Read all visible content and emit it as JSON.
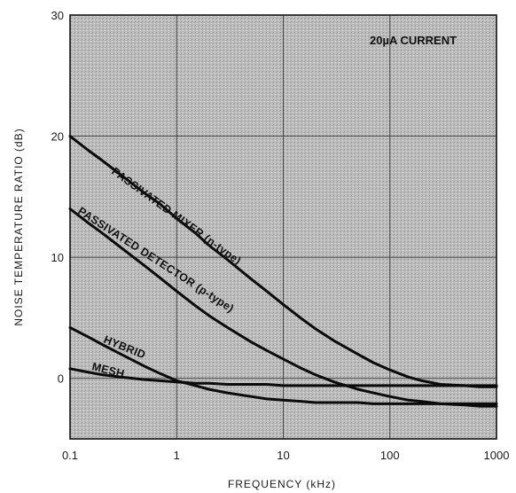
{
  "chart_data": {
    "type": "line",
    "xlabel": "FREQUENCY (kHz)",
    "ylabel": "NOISE TEMPERATURE RATIO (dB)",
    "x_scale": "log",
    "xlim": [
      0.1,
      1000
    ],
    "ylim": [
      -5,
      30
    ],
    "x_ticks": [
      {
        "value": 0.1,
        "label": "0.1"
      },
      {
        "value": 1,
        "label": "1"
      },
      {
        "value": 10,
        "label": "10"
      },
      {
        "value": 100,
        "label": "100"
      },
      {
        "value": 1000,
        "label": "1000"
      }
    ],
    "y_ticks": [
      {
        "value": 0,
        "label": "0"
      },
      {
        "value": 10,
        "label": "10"
      },
      {
        "value": 20,
        "label": "20"
      },
      {
        "value": 30,
        "label": "30"
      }
    ],
    "grid": true,
    "annotation": "20µA CURRENT",
    "series": [
      {
        "name": "PASSIVATED MIXER (n-type)",
        "x": [
          0.1,
          0.15,
          0.2,
          0.3,
          0.5,
          0.7,
          1,
          1.5,
          2,
          3,
          5,
          7,
          10,
          15,
          20,
          30,
          50,
          70,
          100,
          150,
          200,
          300,
          500,
          700,
          1000
        ],
        "y": [
          20,
          18.8,
          18,
          16.8,
          15.3,
          14.4,
          13.2,
          12,
          11,
          9.8,
          8.2,
          7.2,
          6.1,
          4.9,
          4.1,
          3.1,
          2.0,
          1.3,
          0.7,
          0.1,
          -0.2,
          -0.5,
          -0.6,
          -0.7,
          -0.7
        ]
      },
      {
        "name": "PASSIVATED DETECTOR (p-type)",
        "x": [
          0.1,
          0.15,
          0.2,
          0.3,
          0.5,
          0.7,
          1,
          1.5,
          2,
          3,
          5,
          7,
          10,
          15,
          20,
          30,
          50,
          70,
          100,
          150,
          200,
          300,
          500,
          700,
          1000
        ],
        "y": [
          14,
          12.8,
          12,
          10.8,
          9.3,
          8.3,
          7.2,
          6.0,
          5.2,
          4.2,
          3.0,
          2.3,
          1.6,
          0.8,
          0.3,
          -0.3,
          -0.9,
          -1.2,
          -1.5,
          -1.8,
          -1.9,
          -2.1,
          -2.2,
          -2.3,
          -2.3
        ]
      },
      {
        "name": "HYBRID",
        "x": [
          0.1,
          0.15,
          0.2,
          0.3,
          0.5,
          0.7,
          1,
          1.5,
          2,
          3,
          5,
          7,
          10,
          15,
          20,
          30,
          50,
          70,
          100,
          150,
          200,
          300,
          500,
          700,
          1000
        ],
        "y": [
          4.2,
          3.4,
          2.8,
          2.0,
          1.0,
          0.4,
          -0.2,
          -0.6,
          -0.9,
          -1.2,
          -1.5,
          -1.7,
          -1.8,
          -1.9,
          -2.0,
          -2.0,
          -2.0,
          -2.1,
          -2.1,
          -2.1,
          -2.1,
          -2.1,
          -2.1,
          -2.1,
          -2.1
        ]
      },
      {
        "name": "MESH",
        "x": [
          0.1,
          0.15,
          0.2,
          0.3,
          0.5,
          0.7,
          1,
          1.5,
          2,
          3,
          5,
          7,
          10,
          15,
          20,
          30,
          50,
          70,
          100,
          150,
          200,
          300,
          500,
          700,
          1000
        ],
        "y": [
          0.8,
          0.5,
          0.3,
          0.1,
          -0.1,
          -0.2,
          -0.3,
          -0.4,
          -0.4,
          -0.5,
          -0.5,
          -0.5,
          -0.6,
          -0.6,
          -0.6,
          -0.6,
          -0.6,
          -0.6,
          -0.6,
          -0.6,
          -0.6,
          -0.6,
          -0.6,
          -0.6,
          -0.6
        ]
      }
    ]
  }
}
